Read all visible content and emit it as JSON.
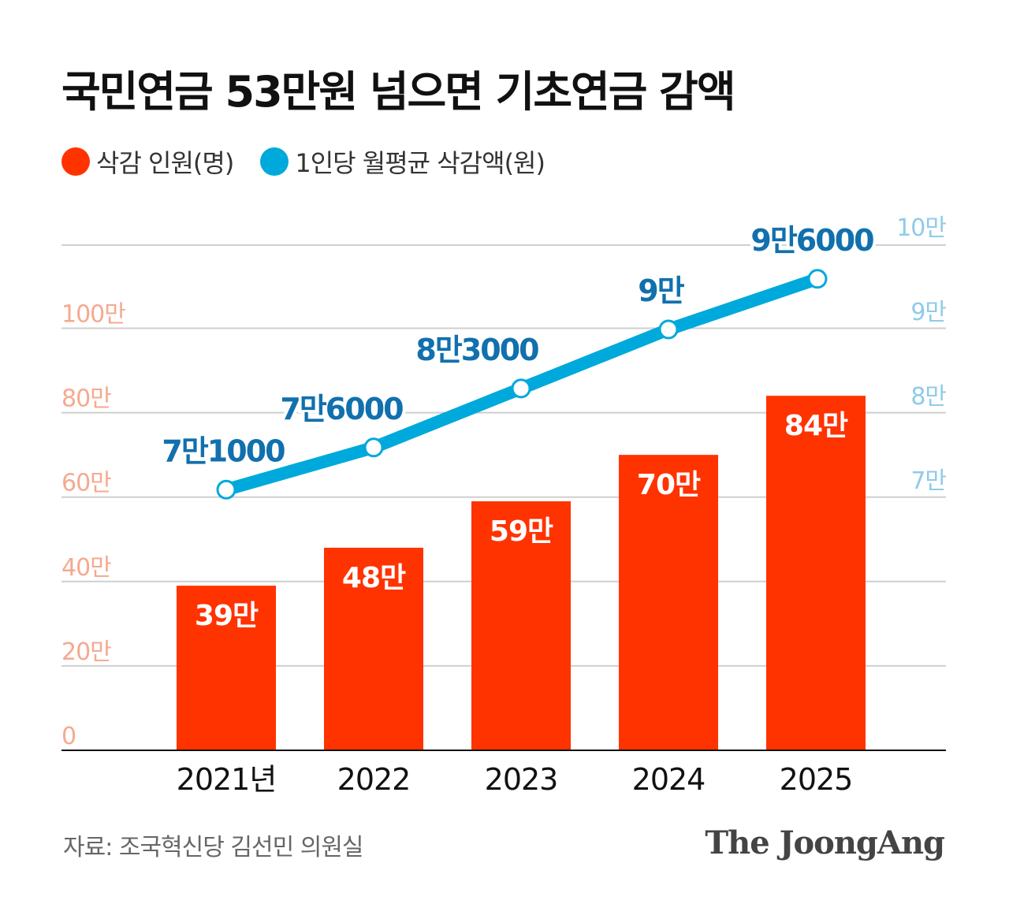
{
  "title": "국민연금 53만원 넘으면 기초연금 감액",
  "legend": [
    {
      "label": "삭감 인원(명)",
      "color": "#ff3300"
    },
    {
      "label": "1인당 월평균 삭감액(원)",
      "color": "#00a9db"
    }
  ],
  "source": "자료: 조국혁신당 김선민 의원실",
  "logo": "The JoongAng",
  "chart_data": {
    "type": "bar+line",
    "categories": [
      "2021년",
      "2022",
      "2023",
      "2024",
      "2025"
    ],
    "series": [
      {
        "name": "삭감 인원(명)",
        "type": "bar",
        "axis": "left",
        "unit": "만 명",
        "values": [
          39,
          48,
          59,
          70,
          84
        ],
        "labels": [
          "39만",
          "48만",
          "59만",
          "70만",
          "84만"
        ],
        "color": "#ff3300"
      },
      {
        "name": "1인당 월평균 삭감액(원)",
        "type": "line",
        "axis": "right",
        "unit": "만 원",
        "values": [
          7.1,
          7.6,
          8.3,
          9.0,
          9.6
        ],
        "labels": [
          "7만1000",
          "7만6000",
          "8만3000",
          "9만",
          "9만6000"
        ],
        "color": "#00a9db"
      }
    ],
    "left_axis": {
      "ylim": [
        0,
        120
      ],
      "ticks": [
        0,
        20,
        40,
        60,
        80,
        100
      ],
      "tick_labels": [
        "0",
        "20만",
        "40만",
        "60만",
        "80만",
        "100만"
      ],
      "color": "#f5a98f"
    },
    "right_axis": {
      "ylim": [
        6.4,
        10
      ],
      "ticks": [
        7,
        8,
        9,
        10
      ],
      "tick_labels": [
        "7만",
        "8만",
        "9만",
        "10만"
      ],
      "color": "#8fcbea"
    },
    "line_label_color": "#1170ad",
    "grid": true,
    "legend_position": "top-left"
  }
}
